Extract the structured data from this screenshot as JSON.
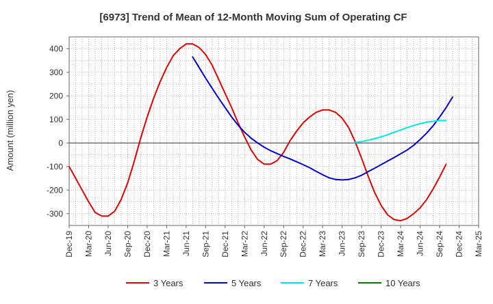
{
  "chart_data": {
    "type": "line",
    "title": "[6973]  Trend of Mean of 12-Month Moving Sum of Operating CF",
    "xlabel": "",
    "ylabel": "Amount (million yen)",
    "ylim": [
      -350,
      450
    ],
    "yticks": [
      -300,
      -200,
      -100,
      0,
      100,
      200,
      300,
      400
    ],
    "grid": true,
    "legend_position": "bottom",
    "x_range": [
      "Dec-19",
      "Mar-25"
    ],
    "x_ticks": [
      "Dec-19",
      "Mar-20",
      "Jun-20",
      "Sep-20",
      "Dec-20",
      "Mar-21",
      "Jun-21",
      "Sep-21",
      "Dec-21",
      "Mar-22",
      "Jun-22",
      "Sep-22",
      "Dec-22",
      "Mar-23",
      "Jun-23",
      "Sep-23",
      "Dec-23",
      "Mar-24",
      "Jun-24",
      "Sep-24",
      "Dec-24",
      "Mar-25"
    ],
    "series": [
      {
        "name": "3 Years",
        "color": "#dd0000",
        "start": "Dec-19",
        "values": [
          -100,
          -150,
          -200,
          -250,
          -295,
          -310,
          -310,
          -290,
          -240,
          -170,
          -80,
          20,
          110,
          190,
          260,
          320,
          370,
          400,
          420,
          420,
          405,
          375,
          330,
          270,
          210,
          150,
          85,
          25,
          -30,
          -70,
          -90,
          -90,
          -75,
          -40,
          10,
          50,
          85,
          110,
          130,
          140,
          140,
          130,
          105,
          65,
          5,
          -65,
          -140,
          -210,
          -265,
          -305,
          -325,
          -330,
          -320,
          -300,
          -275,
          -240,
          -195,
          -145,
          -90
        ]
      },
      {
        "name": "5 Years",
        "color": "#0000cc",
        "start": "Jul-21",
        "values": [
          365,
          320,
          275,
          232,
          190,
          150,
          110,
          75,
          45,
          20,
          0,
          -18,
          -33,
          -45,
          -57,
          -68,
          -80,
          -92,
          -105,
          -120,
          -135,
          -148,
          -155,
          -157,
          -155,
          -148,
          -137,
          -122,
          -107,
          -92,
          -77,
          -62,
          -46,
          -30,
          -10,
          15,
          42,
          73,
          110,
          150,
          195
        ]
      },
      {
        "name": "7 Years",
        "color": "#00e5e5",
        "start": "Aug-23",
        "values": [
          2,
          6,
          12,
          18,
          26,
          35,
          45,
          55,
          65,
          74,
          82,
          88,
          92,
          95,
          95
        ]
      },
      {
        "name": "10 Years",
        "color": "#007700",
        "start": "Aug-23",
        "values": []
      }
    ]
  }
}
